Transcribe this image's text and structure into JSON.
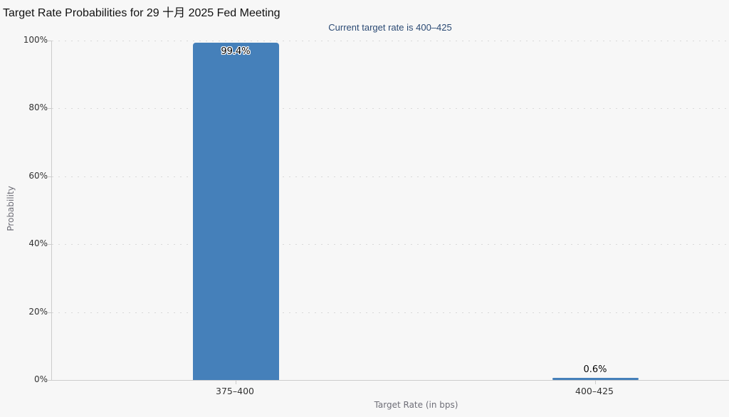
{
  "page": {
    "background_color": "#f7f7f7"
  },
  "chart_data": {
    "type": "bar",
    "title": "Target Rate Probabilities for 29 十月 2025 Fed Meeting",
    "subtitle": "Current target rate is 400–425",
    "xlabel": "Target Rate (in bps)",
    "ylabel": "Probability",
    "categories": [
      "375–400",
      "400–425"
    ],
    "values": [
      99.4,
      0.6
    ],
    "value_labels": [
      "99.4%",
      "0.6%"
    ],
    "yticks": [
      "0%",
      "20%",
      "40%",
      "60%",
      "80%",
      "100%"
    ],
    "ylim": [
      0,
      100
    ],
    "grid": "horizontal dotted",
    "legend": "none",
    "colors": {
      "bar": "#4580ba",
      "title_text": "#111111",
      "subtitle_text": "#2b4a74",
      "axis_line": "#cccccc",
      "gridline": "#d9d9d9",
      "tick_label_text": "#333333",
      "axis_title_text": "#6f6f78"
    }
  }
}
